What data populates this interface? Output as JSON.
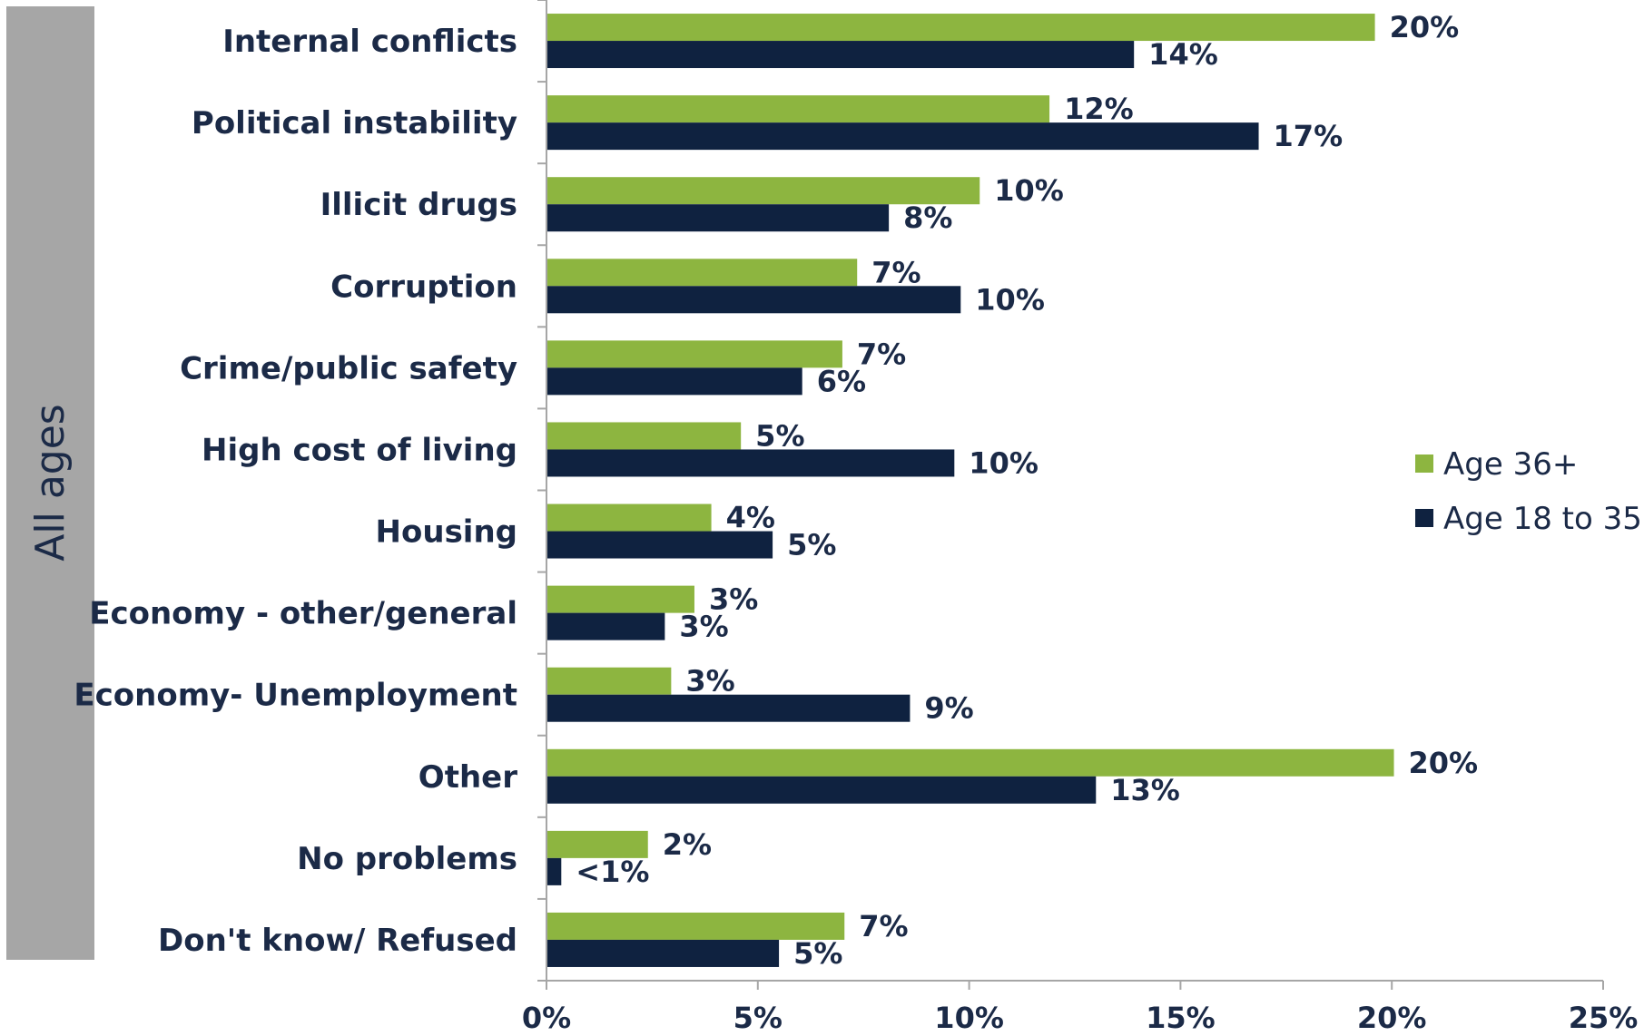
{
  "chart_data": {
    "type": "bar",
    "orientation": "horizontal",
    "group_label": "All ages",
    "categories": [
      "Internal conflicts",
      "Political instability",
      "Illicit drugs",
      "Corruption",
      "Crime/public safety",
      "High cost of living",
      "Housing",
      "Economy - other/general",
      "Economy- Unemployment",
      "Other",
      "No problems",
      "Don't know/ Refused"
    ],
    "series": [
      {
        "name": "Age 36+",
        "color": "#8db540",
        "values": [
          19.6,
          11.9,
          10.25,
          7.35,
          7.0,
          4.6,
          3.9,
          3.5,
          2.95,
          20.05,
          2.4,
          7.05
        ],
        "labels": [
          "20%",
          "12%",
          "10%",
          "7%",
          "7%",
          "5%",
          "4%",
          "3%",
          "3%",
          "20%",
          "2%",
          "7%"
        ]
      },
      {
        "name": "Age 18 to 35",
        "color": "#0f2240",
        "values": [
          13.9,
          16.85,
          8.1,
          9.8,
          6.05,
          9.65,
          5.35,
          2.8,
          8.6,
          13.0,
          0.35,
          5.5
        ],
        "labels": [
          "14%",
          "17%",
          "8%",
          "10%",
          "6%",
          "10%",
          "5%",
          "3%",
          "9%",
          "13%",
          "<1%",
          "5%"
        ]
      }
    ],
    "xlim": [
      0,
      25
    ],
    "xticks": [
      0,
      5,
      10,
      15,
      20,
      25
    ],
    "xtick_labels": [
      "0%",
      "5%",
      "10%",
      "15%",
      "20%",
      "25%"
    ],
    "grid": false,
    "legend": "right"
  }
}
